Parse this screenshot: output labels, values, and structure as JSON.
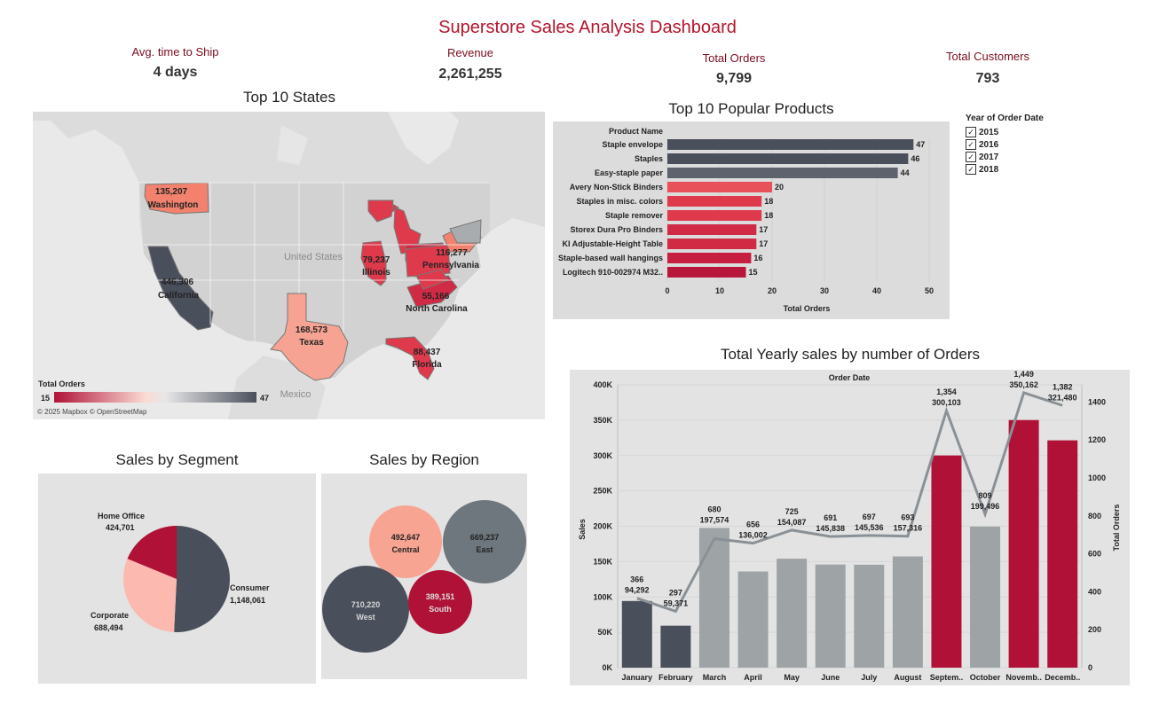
{
  "title": "Superstore Sales Analysis Dashboard",
  "kpis": {
    "ship": {
      "label": "Avg. time to Ship",
      "value": "4 days"
    },
    "revenue": {
      "label": "Revenue",
      "value": "2,261,255"
    },
    "orders": {
      "label": "Total Orders",
      "value": "9,799"
    },
    "customers": {
      "label": "Total Customers",
      "value": "793"
    }
  },
  "colors": {
    "dark": "#4a4f5c",
    "red": "#b01237",
    "pink": "#f4a99b",
    "gray": "#9ea3a6",
    "accent": "#b4142c"
  },
  "map": {
    "title": "Top 10 States",
    "country_labels": [
      "United States",
      "Mexico"
    ],
    "legend_title": "Total Orders",
    "legend_min": "15",
    "legend_max": "47",
    "attribution": "© 2025 Mapbox © OpenStreetMap",
    "states": [
      {
        "name": "Washington",
        "value": "135,207"
      },
      {
        "name": "California",
        "value": "446,306"
      },
      {
        "name": "Texas",
        "value": "168,573"
      },
      {
        "name": "Illinois",
        "value": "79,237"
      },
      {
        "name": "Pennsylvania",
        "value": "116,277"
      },
      {
        "name": "North Carolina",
        "value": "55,166"
      },
      {
        "name": "Florida",
        "value": "88,437"
      }
    ]
  },
  "filter": {
    "title": "Year of Order Date",
    "options": [
      "2015",
      "2016",
      "2017",
      "2018"
    ],
    "checked": [
      true,
      true,
      true,
      true
    ]
  },
  "chart_data": [
    {
      "type": "bar",
      "orientation": "horizontal",
      "title": "Top 10 Popular Products",
      "column_header": "Product Name",
      "xlabel": "Total Orders",
      "xlim": [
        0,
        50
      ],
      "xticks": [
        0,
        10,
        20,
        30,
        40,
        50
      ],
      "categories": [
        "Staple envelope",
        "Staples",
        "Easy-staple paper",
        "Avery Non-Stick Binders",
        "Staples in misc. colors",
        "Staple remover",
        "Storex Dura Pro Binders",
        "KI Adjustable-Height Table",
        "Staple-based wall hangings",
        "Logitech 910-002974 M32.."
      ],
      "values": [
        47,
        46,
        44,
        20,
        18,
        18,
        17,
        17,
        16,
        15
      ],
      "bar_colors": [
        "#4a4f5c",
        "#4a4f5c",
        "#5d626d",
        "#e8505a",
        "#df3a4c",
        "#df3a4c",
        "#d12a45",
        "#d12a45",
        "#c61f40",
        "#b8163a"
      ]
    },
    {
      "type": "bar",
      "title": "Total Yearly sales by number of Orders",
      "header": "Order Date",
      "ylabel": "Sales",
      "y2label": "Total Orders",
      "ylim": [
        0,
        400000
      ],
      "y2lim": [
        0,
        1500
      ],
      "yticks": [
        "0K",
        "50K",
        "100K",
        "150K",
        "200K",
        "250K",
        "300K",
        "350K",
        "400K"
      ],
      "y2ticks": [
        "0",
        "200",
        "400",
        "600",
        "800",
        "1000",
        "1200",
        "1400"
      ],
      "categories": [
        "January",
        "February",
        "March",
        "April",
        "May",
        "June",
        "July",
        "August",
        "Septem..",
        "October",
        "Novemb..",
        "Decemb.."
      ],
      "series": [
        {
          "name": "Sales",
          "type": "bar",
          "values": [
            94292,
            59371,
            197574,
            136002,
            154087,
            145838,
            145536,
            157316,
            300103,
            199496,
            350162,
            321480
          ],
          "labels": [
            "94,292",
            "59,371",
            "197,574",
            "136,002",
            "154,087",
            "145,838",
            "145,536",
            "157,316",
            "300,103",
            "199,496",
            "350,162",
            "321,480"
          ]
        },
        {
          "name": "Total Orders",
          "type": "line",
          "values": [
            366,
            297,
            680,
            656,
            725,
            691,
            697,
            693,
            1354,
            809,
            1449,
            1382
          ],
          "labels": [
            "366",
            "297",
            "680",
            "656",
            "725",
            "691",
            "697",
            "693",
            "1,354",
            "809",
            "1,449",
            "1,382"
          ]
        }
      ],
      "bar_colors": [
        "#4a4f5c",
        "#4a4f5c",
        "#9ea3a6",
        "#9ea3a6",
        "#9ea3a6",
        "#9ea3a6",
        "#9ea3a6",
        "#9ea3a6",
        "#b01237",
        "#9ea3a6",
        "#b01237",
        "#b01237"
      ]
    },
    {
      "type": "pie",
      "title": "Sales by Segment",
      "slices": [
        {
          "label": "Consumer",
          "value": 1148061,
          "text": "1,148,061",
          "color": "#4a4f5c"
        },
        {
          "label": "Corporate",
          "value": 688494,
          "text": "688,494",
          "color": "#fbb9b0"
        },
        {
          "label": "Home Office",
          "value": 424701,
          "text": "424,701",
          "color": "#b01237"
        }
      ]
    },
    {
      "type": "bubble",
      "title": "Sales by Region",
      "bubbles": [
        {
          "label": "Central",
          "value": 492647,
          "text": "492,647",
          "color": "#f8a493"
        },
        {
          "label": "East",
          "value": 669237,
          "text": "669,237",
          "color": "#6e777d"
        },
        {
          "label": "West",
          "value": 710220,
          "text": "710,220",
          "color": "#4a4f5c"
        },
        {
          "label": "South",
          "value": 389151,
          "text": "389,151",
          "color": "#b01237"
        }
      ]
    }
  ]
}
